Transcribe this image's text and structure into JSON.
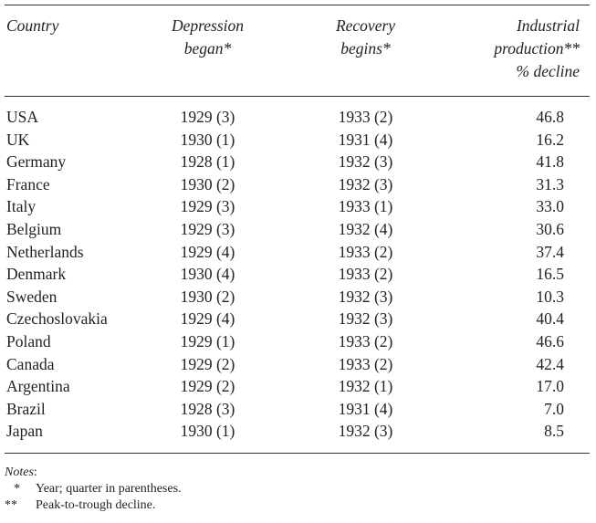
{
  "header": {
    "country": "Country",
    "began": [
      "Depression",
      "began*"
    ],
    "recovery": [
      "Recovery",
      "begins*"
    ],
    "decline": [
      "Industrial",
      "production**",
      "% decline"
    ]
  },
  "rows": [
    {
      "country": "USA",
      "began": "1929 (3)",
      "recovery": "1933 (2)",
      "decline": "46.8"
    },
    {
      "country": "UK",
      "began": "1930 (1)",
      "recovery": "1931 (4)",
      "decline": "16.2"
    },
    {
      "country": "Germany",
      "began": "1928 (1)",
      "recovery": "1932 (3)",
      "decline": "41.8"
    },
    {
      "country": "France",
      "began": "1930 (2)",
      "recovery": "1932 (3)",
      "decline": "31.3"
    },
    {
      "country": "Italy",
      "began": "1929 (3)",
      "recovery": "1933 (1)",
      "decline": "33.0"
    },
    {
      "country": "Belgium",
      "began": "1929 (3)",
      "recovery": "1932 (4)",
      "decline": "30.6"
    },
    {
      "country": "Netherlands",
      "began": "1929 (4)",
      "recovery": "1933 (2)",
      "decline": "37.4"
    },
    {
      "country": "Denmark",
      "began": "1930 (4)",
      "recovery": "1933 (2)",
      "decline": "16.5"
    },
    {
      "country": "Sweden",
      "began": "1930 (2)",
      "recovery": "1932 (3)",
      "decline": "10.3"
    },
    {
      "country": "Czechoslovakia",
      "began": "1929 (4)",
      "recovery": "1932 (3)",
      "decline": "40.4"
    },
    {
      "country": "Poland",
      "began": "1929 (1)",
      "recovery": "1933 (2)",
      "decline": "46.6"
    },
    {
      "country": "Canada",
      "began": "1929 (2)",
      "recovery": "1933 (2)",
      "decline": "42.4"
    },
    {
      "country": "Argentina",
      "began": "1929 (2)",
      "recovery": "1932 (1)",
      "decline": "17.0"
    },
    {
      "country": "Brazil",
      "began": "1928 (3)",
      "recovery": "1931 (4)",
      "decline": "7.0"
    },
    {
      "country": "Japan",
      "began": "1930 (1)",
      "recovery": "1932 (3)",
      "decline": "8.5"
    }
  ],
  "notes": {
    "title": "Notes",
    "colon": ":",
    "items": [
      {
        "mark": "*",
        "text": "Year; quarter in parentheses."
      },
      {
        "mark": "**",
        "text": "Peak-to-trough decline."
      }
    ]
  }
}
